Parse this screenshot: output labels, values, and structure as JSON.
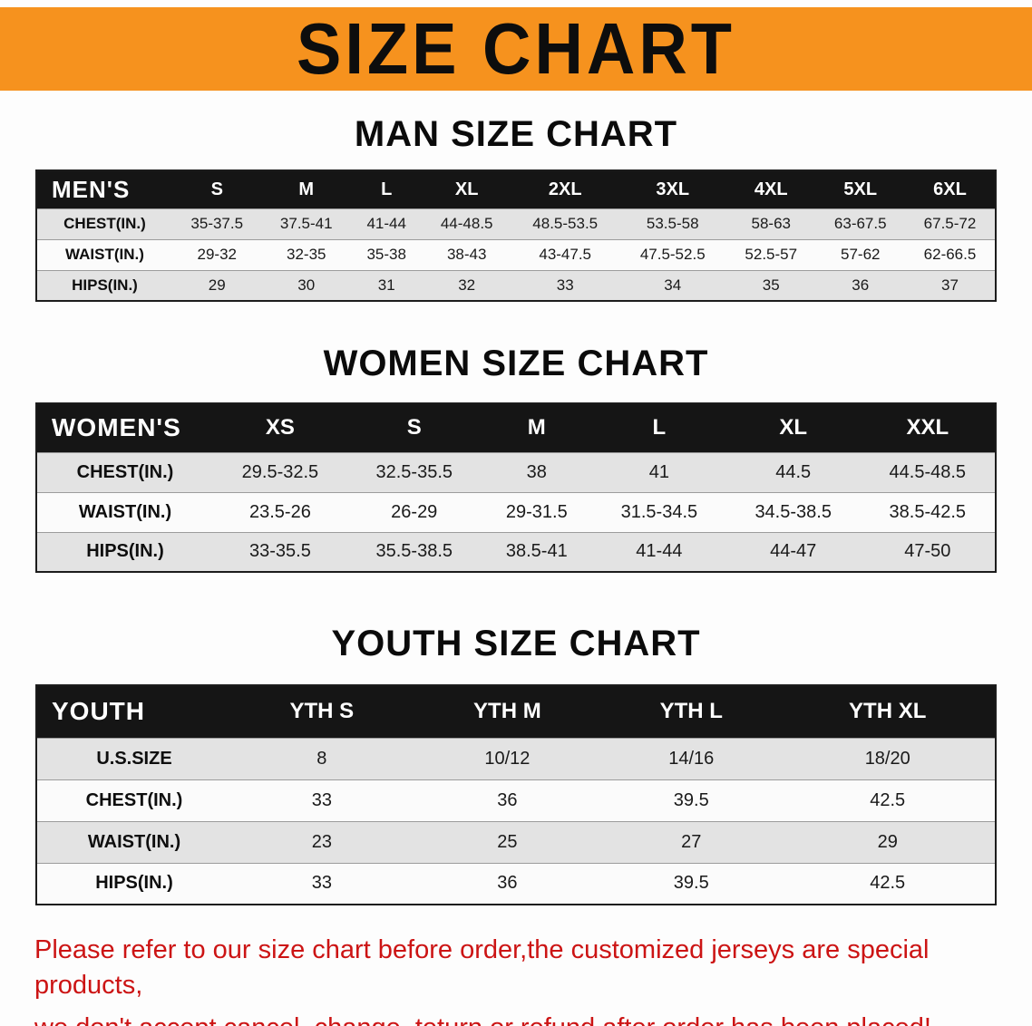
{
  "banner": {
    "title": "SIZE CHART",
    "background_color": "#f6921e",
    "text_color": "#0d0d0d"
  },
  "sections": [
    {
      "heading": "MAN SIZE CHART",
      "table": {
        "header": [
          "MEN'S",
          "S",
          "M",
          "L",
          "XL",
          "2XL",
          "3XL",
          "4XL",
          "5XL",
          "6XL"
        ],
        "rows": [
          {
            "label": "CHEST(IN.)",
            "values": [
              "35-37.5",
              "37.5-41",
              "41-44",
              "44-48.5",
              "48.5-53.5",
              "53.5-58",
              "58-63",
              "63-67.5",
              "67.5-72"
            ]
          },
          {
            "label": "WAIST(IN.)",
            "values": [
              "29-32",
              "32-35",
              "35-38",
              "38-43",
              "43-47.5",
              "47.5-52.5",
              "52.5-57",
              "57-62",
              "62-66.5"
            ]
          },
          {
            "label": "HIPS(IN.)",
            "values": [
              "29",
              "30",
              "31",
              "32",
              "33",
              "34",
              "35",
              "36",
              "37"
            ]
          }
        ]
      }
    },
    {
      "heading": "WOMEN SIZE CHART",
      "table": {
        "header": [
          "WOMEN'S",
          "XS",
          "S",
          "M",
          "L",
          "XL",
          "XXL"
        ],
        "rows": [
          {
            "label": "CHEST(IN.)",
            "values": [
              "29.5-32.5",
              "32.5-35.5",
              "38",
              "41",
              "44.5",
              "44.5-48.5"
            ]
          },
          {
            "label": "WAIST(IN.)",
            "values": [
              "23.5-26",
              "26-29",
              "29-31.5",
              "31.5-34.5",
              "34.5-38.5",
              "38.5-42.5"
            ]
          },
          {
            "label": "HIPS(IN.)",
            "values": [
              "33-35.5",
              "35.5-38.5",
              "38.5-41",
              "41-44",
              "44-47",
              "47-50"
            ]
          }
        ]
      }
    },
    {
      "heading": "YOUTH SIZE CHART",
      "table": {
        "header": [
          "YOUTH",
          "YTH S",
          "YTH M",
          "YTH L",
          "YTH XL"
        ],
        "rows": [
          {
            "label": "U.S.SIZE",
            "values": [
              "8",
              "10/12",
              "14/16",
              "18/20"
            ]
          },
          {
            "label": "CHEST(IN.)",
            "values": [
              "33",
              "36",
              "39.5",
              "42.5"
            ]
          },
          {
            "label": "WAIST(IN.)",
            "values": [
              "23",
              "25",
              "27",
              "29"
            ]
          },
          {
            "label": "HIPS(IN.)",
            "values": [
              "33",
              "36",
              "39.5",
              "42.5"
            ]
          }
        ]
      }
    }
  ],
  "disclaimer": {
    "line1": "Please refer to our size chart before order,the customized jerseys are special products,",
    "line2": "we don't accept cancel, change, teturn or refund after order has been placed!",
    "text_color": "#cc1414"
  }
}
